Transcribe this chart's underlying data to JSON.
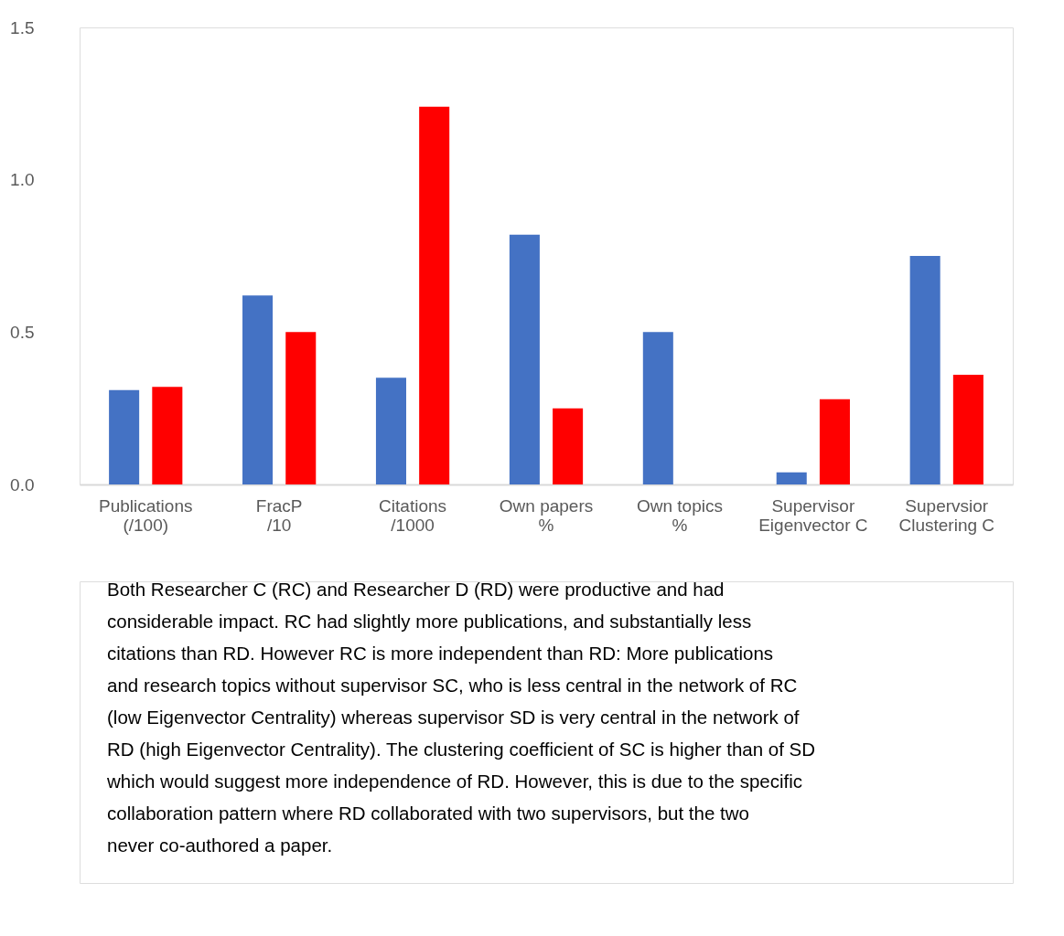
{
  "chart_data": {
    "type": "bar",
    "categories": [
      "Publications\n(/100)",
      "FracP\n/10",
      "Citations\n/1000",
      "Own papers\n%",
      "Own topics\n%",
      "Supervisor\nEigenvector C",
      "Supervsior\nClustering C"
    ],
    "series": [
      {
        "color": "#4472c4",
        "values": [
          0.31,
          0.62,
          0.35,
          0.82,
          0.5,
          0.04,
          0.75
        ]
      },
      {
        "color": "#ff0000",
        "values": [
          0.32,
          0.5,
          1.24,
          0.25,
          0,
          0.28,
          0.36
        ]
      }
    ],
    "ylim": [
      0,
      1.5
    ],
    "yticks": [
      {
        "value": 0,
        "label": "0.0"
      },
      0.5,
      {
        "value": 1,
        "label": "1.0"
      },
      1.5
    ],
    "grid": false,
    "legend": false,
    "annotations": [
      "Both Researcher C (RC) and Researcher D (RD) were productive and had\nconsiderable impact. RC had slightly more publications, and substantially less\ncitations than RD. However RC is more independent than RD: More publications\nand research topics without supervisor SC, who is less central in the network of RC\n(low Eigenvector Centrality) whereas supervisor SD is very central in the network of\nRD (high Eigenvector Centrality). The clustering coefficient of SC is higher than of SD\nwhich would suggest more independence of RD. However, this is due to the specific\ncollaboration pattern where RD collaborated with two supervisors, but the two\nnever co-authored a paper."
    ]
  }
}
